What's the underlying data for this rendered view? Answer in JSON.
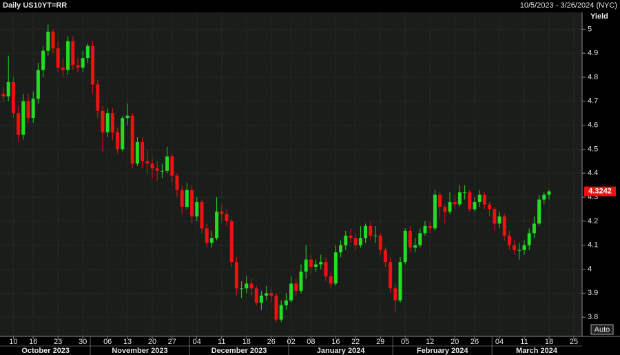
{
  "chart_data": {
    "type": "candlestick",
    "title": "Daily US10YT=RR",
    "date_range": "10/5/2023 - 3/26/2024 (NYC)",
    "y_label": "Yield",
    "button": "Auto",
    "up_color": "#22dd22",
    "down_color": "#ee1111",
    "grid": true,
    "ylim": [
      3.72,
      5.07
    ],
    "yticks": [
      3.8,
      3.9,
      4,
      4.1,
      4.2,
      4.3,
      4.4,
      4.5,
      4.6,
      4.7,
      4.8,
      4.9,
      5
    ],
    "x": [
      "2023-10-05",
      "2023-10-06",
      "2023-10-10",
      "2023-10-11",
      "2023-10-12",
      "2023-10-13",
      "2023-10-16",
      "2023-10-17",
      "2023-10-18",
      "2023-10-19",
      "2023-10-20",
      "2023-10-23",
      "2023-10-24",
      "2023-10-25",
      "2023-10-26",
      "2023-10-27",
      "2023-10-30",
      "2023-10-31",
      "2023-11-01",
      "2023-11-02",
      "2023-11-03",
      "2023-11-06",
      "2023-11-07",
      "2023-11-08",
      "2023-11-09",
      "2023-11-13",
      "2023-11-14",
      "2023-11-15",
      "2023-11-16",
      "2023-11-17",
      "2023-11-20",
      "2023-11-21",
      "2023-11-22",
      "2023-11-24",
      "2023-11-27",
      "2023-11-28",
      "2023-11-29",
      "2023-11-30",
      "2023-12-01",
      "2023-12-04",
      "2023-12-05",
      "2023-12-06",
      "2023-12-07",
      "2023-12-08",
      "2023-12-11",
      "2023-12-12",
      "2023-12-13",
      "2023-12-14",
      "2023-12-15",
      "2023-12-18",
      "2023-12-19",
      "2023-12-20",
      "2023-12-21",
      "2023-12-22",
      "2023-12-26",
      "2023-12-27",
      "2023-12-28",
      "2023-12-29",
      "2024-01-02",
      "2024-01-03",
      "2024-01-04",
      "2024-01-05",
      "2024-01-08",
      "2024-01-09",
      "2024-01-10",
      "2024-01-11",
      "2024-01-12",
      "2024-01-16",
      "2024-01-17",
      "2024-01-18",
      "2024-01-19",
      "2024-01-22",
      "2024-01-23",
      "2024-01-24",
      "2024-01-25",
      "2024-01-26",
      "2024-01-29",
      "2024-01-30",
      "2024-01-31",
      "2024-02-01",
      "2024-02-02",
      "2024-02-05",
      "2024-02-06",
      "2024-02-07",
      "2024-02-08",
      "2024-02-09",
      "2024-02-12",
      "2024-02-13",
      "2024-02-14",
      "2024-02-15",
      "2024-02-16",
      "2024-02-20",
      "2024-02-21",
      "2024-02-22",
      "2024-02-23",
      "2024-02-26",
      "2024-02-27",
      "2024-02-28",
      "2024-02-29",
      "2024-03-01",
      "2024-03-04",
      "2024-03-05",
      "2024-03-06",
      "2024-03-07",
      "2024-03-08",
      "2024-03-11",
      "2024-03-12",
      "2024-03-13",
      "2024-03-14",
      "2024-03-15",
      "2024-03-18",
      "2024-03-19",
      "2024-03-20",
      "2024-03-21",
      "2024-03-22",
      "2024-03-25",
      "2024-03-26"
    ],
    "open": [
      4.73,
      4.72,
      4.78,
      4.65,
      4.56,
      4.7,
      4.63,
      4.71,
      4.83,
      4.91,
      4.99,
      4.92,
      4.84,
      4.83,
      4.95,
      4.85,
      4.84,
      4.88,
      4.93,
      4.77,
      4.66,
      4.57,
      4.65,
      4.57,
      4.5,
      4.63,
      4.64,
      4.44,
      4.53,
      4.45,
      4.44,
      4.42,
      4.41,
      4.41,
      4.47,
      4.39,
      4.33,
      4.26,
      4.33,
      4.22,
      4.28,
      4.17,
      4.11,
      4.13,
      4.24,
      4.23,
      4.2,
      4.03,
      3.92,
      3.92,
      3.94,
      3.92,
      3.86,
      3.89,
      3.9,
      3.89,
      3.79,
      3.85,
      3.87,
      3.94,
      3.91,
      3.99,
      4.04,
      4.01,
      4.02,
      4.03,
      3.97,
      3.94,
      4.07,
      4.1,
      4.14,
      4.13,
      4.1,
      4.13,
      4.18,
      4.14,
      4.14,
      4.08,
      4.03,
      3.92,
      3.87,
      4.03,
      4.16,
      4.09,
      4.1,
      4.15,
      4.18,
      4.17,
      4.31,
      4.26,
      4.24,
      4.28,
      4.27,
      4.32,
      4.32,
      4.25,
      4.28,
      4.31,
      4.27,
      4.25,
      4.19,
      4.22,
      4.14,
      4.1,
      4.08,
      4.08,
      4.1,
      4.15,
      4.19,
      4.29,
      4.31,
      null,
      null,
      null,
      null,
      null,
      null
    ],
    "high": [
      4.76,
      4.89,
      4.8,
      4.68,
      4.73,
      4.73,
      4.74,
      4.86,
      4.93,
      5.02,
      5.0,
      4.95,
      4.88,
      4.97,
      4.97,
      4.88,
      4.91,
      4.94,
      4.95,
      4.79,
      4.68,
      4.67,
      4.67,
      4.59,
      4.64,
      4.69,
      4.65,
      4.55,
      4.55,
      4.5,
      4.46,
      4.45,
      4.44,
      4.51,
      4.48,
      4.4,
      4.35,
      4.36,
      4.35,
      4.3,
      4.29,
      4.19,
      4.16,
      4.3,
      4.27,
      4.25,
      4.21,
      4.05,
      3.95,
      3.97,
      3.96,
      3.93,
      3.91,
      3.93,
      3.92,
      3.9,
      3.87,
      3.9,
      3.97,
      3.96,
      4.02,
      4.1,
      4.06,
      4.04,
      4.06,
      4.05,
      3.99,
      4.1,
      4.12,
      4.16,
      4.17,
      4.15,
      4.18,
      4.19,
      4.2,
      4.18,
      4.15,
      4.09,
      4.05,
      3.94,
      4.05,
      4.17,
      4.18,
      4.13,
      4.17,
      4.2,
      4.2,
      4.33,
      4.32,
      4.27,
      4.32,
      4.31,
      4.35,
      4.35,
      4.33,
      4.3,
      4.33,
      4.32,
      4.28,
      4.26,
      4.24,
      4.23,
      4.16,
      4.12,
      4.11,
      4.12,
      4.17,
      4.22,
      4.31,
      4.32,
      4.33,
      null,
      null,
      null,
      null,
      null,
      null
    ],
    "low": [
      4.7,
      4.7,
      4.63,
      4.53,
      4.54,
      4.61,
      4.61,
      4.69,
      4.8,
      4.89,
      4.9,
      4.82,
      4.8,
      4.81,
      4.83,
      4.82,
      4.82,
      4.86,
      4.73,
      4.63,
      4.49,
      4.55,
      4.54,
      4.48,
      4.49,
      4.6,
      4.42,
      4.43,
      4.42,
      4.4,
      4.38,
      4.37,
      4.38,
      4.4,
      4.36,
      4.3,
      4.23,
      4.25,
      4.19,
      4.2,
      4.15,
      4.09,
      4.09,
      4.12,
      4.2,
      4.18,
      4.01,
      3.89,
      3.88,
      3.9,
      3.89,
      3.85,
      3.83,
      3.87,
      3.86,
      3.78,
      3.78,
      3.83,
      3.86,
      3.89,
      3.9,
      3.96,
      3.98,
      3.99,
      4.0,
      3.95,
      3.92,
      3.93,
      4.05,
      4.08,
      4.11,
      4.08,
      4.09,
      4.11,
      4.12,
      4.11,
      4.06,
      4.01,
      3.9,
      3.82,
      3.86,
      4.02,
      4.07,
      4.07,
      4.09,
      4.14,
      4.15,
      4.16,
      4.21,
      4.19,
      4.23,
      4.25,
      4.26,
      4.29,
      4.24,
      4.24,
      4.26,
      4.25,
      4.22,
      4.16,
      4.17,
      4.12,
      4.08,
      4.06,
      4.04,
      4.06,
      4.08,
      4.13,
      4.18,
      4.27,
      4.29,
      null,
      null,
      null,
      null,
      null,
      null
    ],
    "close": [
      4.72,
      4.78,
      4.65,
      4.56,
      4.7,
      4.63,
      4.71,
      4.83,
      4.91,
      4.99,
      4.92,
      4.84,
      4.83,
      4.95,
      4.85,
      4.84,
      4.88,
      4.93,
      4.77,
      4.66,
      4.57,
      4.65,
      4.57,
      4.5,
      4.63,
      4.64,
      4.44,
      4.53,
      4.45,
      4.44,
      4.42,
      4.41,
      4.41,
      4.47,
      4.39,
      4.33,
      4.26,
      4.33,
      4.22,
      4.28,
      4.17,
      4.11,
      4.13,
      4.24,
      4.23,
      4.2,
      4.03,
      3.92,
      3.92,
      3.94,
      3.92,
      3.86,
      3.89,
      3.9,
      3.89,
      3.79,
      3.85,
      3.87,
      3.94,
      3.91,
      3.99,
      4.04,
      4.01,
      4.02,
      4.03,
      3.97,
      3.94,
      4.07,
      4.1,
      4.14,
      4.13,
      4.1,
      4.13,
      4.18,
      4.14,
      4.14,
      4.08,
      4.03,
      3.92,
      3.87,
      4.03,
      4.16,
      4.09,
      4.1,
      4.15,
      4.18,
      4.17,
      4.31,
      4.26,
      4.24,
      4.28,
      4.27,
      4.32,
      4.32,
      4.25,
      4.28,
      4.31,
      4.27,
      4.25,
      4.19,
      4.22,
      4.14,
      4.1,
      4.08,
      4.08,
      4.1,
      4.15,
      4.19,
      4.29,
      4.31,
      4.3242,
      null,
      null,
      null,
      null,
      null,
      null
    ],
    "xticks": [
      {
        "value": "2023-10-10",
        "label": "10"
      },
      {
        "value": "2023-10-16",
        "label": "16"
      },
      {
        "value": "2023-10-23",
        "label": "23"
      },
      {
        "value": "2023-10-30",
        "label": "30"
      },
      {
        "value": "2023-11-06",
        "label": "06"
      },
      {
        "value": "2023-11-13",
        "label": "13"
      },
      {
        "value": "2023-11-20",
        "label": "20"
      },
      {
        "value": "2023-11-27",
        "label": "27"
      },
      {
        "value": "2023-12-04",
        "label": "04"
      },
      {
        "value": "2023-12-11",
        "label": "11"
      },
      {
        "value": "2023-12-18",
        "label": "18"
      },
      {
        "value": "2023-12-26",
        "label": "26"
      },
      {
        "value": "2024-01-02",
        "label": "02"
      },
      {
        "value": "2024-01-08",
        "label": "08"
      },
      {
        "value": "2024-01-16",
        "label": "16"
      },
      {
        "value": "2024-01-22",
        "label": "22"
      },
      {
        "value": "2024-01-29",
        "label": "29"
      },
      {
        "value": "2024-02-05",
        "label": "05"
      },
      {
        "value": "2024-02-12",
        "label": "12"
      },
      {
        "value": "2024-02-20",
        "label": "20"
      },
      {
        "value": "2024-02-26",
        "label": "26"
      },
      {
        "value": "2024-03-04",
        "label": "04"
      },
      {
        "value": "2024-03-11",
        "label": "11"
      },
      {
        "value": "2024-03-18",
        "label": "18"
      },
      {
        "value": "2024-03-25",
        "label": "25"
      }
    ],
    "month_labels": [
      "October 2023",
      "November 2023",
      "December 2023",
      "January 2024",
      "February 2024",
      "March 2024"
    ]
  }
}
